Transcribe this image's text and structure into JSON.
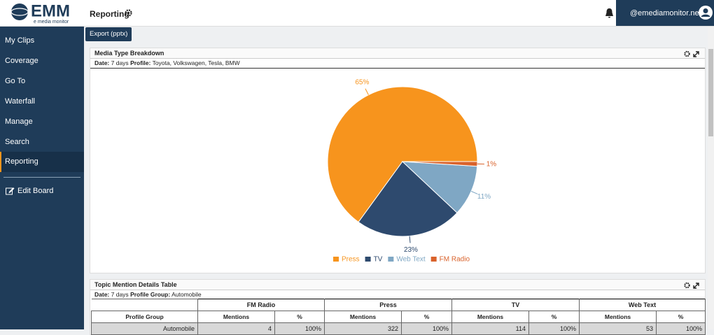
{
  "logo": {
    "mark": "EMM",
    "tagline": "e media monitor"
  },
  "header": {
    "title": "Reporting",
    "account": "@emediamonitor.net"
  },
  "sidebar": {
    "items": [
      "My Clips",
      "Coverage",
      "Go To",
      "Waterfall",
      "Manage",
      "Search",
      "Reporting"
    ],
    "edit": "Edit Board"
  },
  "export": "Export (pptx)",
  "panels": [
    {
      "title": "Media Type Breakdown",
      "date_label": "Date:",
      "date": "7 days",
      "profile_label": "Profile:",
      "profile": "Toyota, Volkswagen, Tesla, BMW"
    },
    {
      "title": "Topic Mention Details Table",
      "date_label": "Date:",
      "date": "7 days",
      "profile_label": "Profile Group:",
      "profile": "Automobile"
    }
  ],
  "chart_data": {
    "type": "pie",
    "categories": [
      "Press",
      "TV",
      "Web Text",
      "FM Radio"
    ],
    "values": [
      65,
      23,
      11,
      1
    ],
    "value_labels": [
      "65%",
      "23%",
      "11%",
      "1%"
    ],
    "colors": [
      "#f7941d",
      "#2e4a6e",
      "#7fa7c4",
      "#d9622b"
    ],
    "legend": "bottom"
  },
  "table": {
    "groups": [
      "FM Radio",
      "Press",
      "TV",
      "Web Text"
    ],
    "subheaders": [
      "Profile Group",
      "Mentions",
      "%",
      "Mentions",
      "%",
      "Mentions",
      "%",
      "Mentions",
      "%"
    ],
    "rows": [
      [
        "Automobile",
        "4",
        "100%",
        "322",
        "100%",
        "114",
        "100%",
        "53",
        "100%"
      ]
    ]
  }
}
